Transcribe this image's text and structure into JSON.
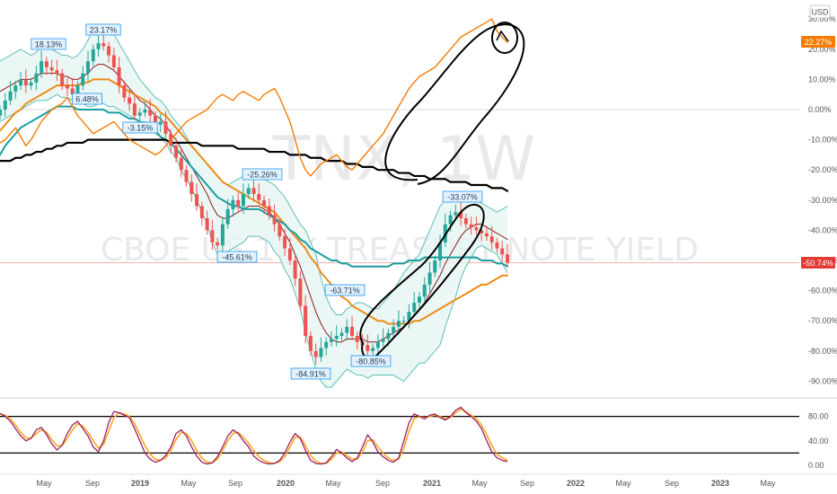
{
  "currency": "USD",
  "watermark": {
    "symbol": "TNX, 1W",
    "name": "CBOE US 10Y TREASURY NOTE YIELD"
  },
  "colors": {
    "bg": "#ffffff",
    "up": "#26a69a",
    "down": "#ef5350",
    "comparison": "#f57c00",
    "sma_long": "#000000",
    "ema_teal": "#1a9ea0",
    "ema_orange": "#ef8a17",
    "bb_basis": "#8b1a1a",
    "bb_band": "#5cbfb7",
    "bb_fill": "#e6f5f3",
    "stoch_k": "#9c1f6a",
    "stoch_d": "#f5a623",
    "price_label_bg": "#e53935",
    "comparison_label_bg": "#f57c00",
    "hl_label_bg": "#e3f2fd",
    "hl_label_border": "#2196f3",
    "drawing": "#000000",
    "grid": "#e6e6e6"
  },
  "chart_data": [
    {
      "type": "candlestick",
      "title": "CBOE US 10Y TREASURY NOTE YIELD",
      "timeframe": "1W",
      "ylabel": "%",
      "ylim": [
        -95,
        32
      ],
      "x_tick_labels": [
        "May",
        "Sep",
        "2019",
        "May",
        "Sep",
        "2020",
        "May",
        "Sep",
        "2021",
        "May",
        "Sep",
        "2022",
        "May",
        "Sep",
        "2023",
        "May"
      ],
      "y_tick_labels": [
        "30.00%",
        "20.00%",
        "10.00%",
        "0.00%",
        "-10.00%",
        "-20.00%",
        "-30.00%",
        "-40.00%",
        "-50.00%",
        "-60.00%",
        "-70.00%",
        "-80.00%",
        "-90.00%"
      ],
      "price_close": [
        0,
        3,
        6,
        8,
        10,
        8,
        9,
        12,
        16,
        14,
        13,
        12,
        8,
        7,
        5,
        8,
        12,
        16,
        20,
        22,
        21,
        18,
        14,
        8,
        4,
        2,
        -2,
        -1,
        0,
        -2,
        -5,
        -4,
        -8,
        -12,
        -16,
        -20,
        -24,
        -28,
        -32,
        -36,
        -40,
        -44,
        -45,
        -38,
        -33,
        -30,
        -32,
        -28,
        -26,
        -28,
        -30,
        -32,
        -35,
        -38,
        -42,
        -46,
        -50,
        -56,
        -65,
        -75,
        -80,
        -82,
        -79,
        -77,
        -76,
        -75,
        -74,
        -72,
        -75,
        -77,
        -78,
        -80,
        -79,
        -77,
        -76,
        -74,
        -72,
        -70,
        -70,
        -67,
        -64,
        -62,
        -58,
        -54,
        -50,
        -44,
        -38,
        -35,
        -34,
        -36,
        -38,
        -39,
        -40,
        -41,
        -42,
        -44,
        -46,
        -48,
        -50.74
      ],
      "bands_basis": [
        6,
        7,
        8,
        9,
        10,
        10,
        10,
        11,
        12,
        12,
        12,
        12,
        11,
        11,
        10,
        10,
        11,
        12,
        14,
        15,
        15,
        14,
        13,
        11,
        9,
        7,
        5,
        3,
        2,
        0,
        -2,
        -3,
        -5,
        -8,
        -10,
        -13,
        -16,
        -19,
        -22,
        -25,
        -28,
        -32,
        -35,
        -36,
        -36,
        -35,
        -34,
        -33,
        -32,
        -32,
        -32,
        -33,
        -34,
        -36,
        -38,
        -41,
        -44,
        -48,
        -52,
        -57,
        -62,
        -67,
        -71,
        -74,
        -76,
        -77,
        -77,
        -76,
        -76,
        -76,
        -76,
        -77,
        -77,
        -77,
        -76,
        -75,
        -74,
        -73,
        -72,
        -70,
        -68,
        -66,
        -64,
        -61,
        -58,
        -55,
        -51,
        -48,
        -45,
        -42,
        -40,
        -39,
        -38,
        -38,
        -39,
        -40,
        -41,
        -42,
        -43
      ],
      "bands_upper": [
        16,
        17,
        18,
        19,
        20,
        19,
        18,
        19,
        21,
        21,
        20,
        19,
        18,
        18,
        17,
        18,
        20,
        23,
        27,
        28,
        28,
        27,
        25,
        22,
        19,
        16,
        13,
        10,
        8,
        6,
        4,
        3,
        1,
        -2,
        -4,
        -6,
        -9,
        -12,
        -14,
        -16,
        -18,
        -20,
        -22,
        -24,
        -25,
        -24,
        -23,
        -22,
        -22,
        -22,
        -22,
        -23,
        -24,
        -25,
        -27,
        -29,
        -32,
        -35,
        -38,
        -40,
        -44,
        -48,
        -56,
        -62,
        -66,
        -68,
        -68,
        -66,
        -65,
        -64,
        -64,
        -65,
        -66,
        -66,
        -64,
        -62,
        -60,
        -57,
        -54,
        -52,
        -50,
        -48,
        -44,
        -40,
        -36,
        -32,
        -30,
        -29,
        -28,
        -28,
        -28,
        -29,
        -30,
        -31,
        -32,
        -33,
        -34,
        -33,
        -32
      ],
      "bands_lower": [
        -4,
        -3,
        -2,
        -1,
        0,
        1,
        2,
        3,
        3,
        3,
        4,
        5,
        4,
        4,
        3,
        2,
        2,
        1,
        1,
        2,
        2,
        1,
        1,
        0,
        -1,
        -2,
        -3,
        -4,
        -4,
        -6,
        -8,
        -9,
        -11,
        -14,
        -16,
        -20,
        -23,
        -26,
        -30,
        -34,
        -38,
        -44,
        -48,
        -48,
        -47,
        -46,
        -45,
        -44,
        -42,
        -42,
        -42,
        -43,
        -44,
        -47,
        -49,
        -53,
        -56,
        -61,
        -66,
        -74,
        -80,
        -86,
        -90,
        -92,
        -92,
        -90,
        -88,
        -86,
        -87,
        -88,
        -88,
        -89,
        -88,
        -88,
        -88,
        -88,
        -88,
        -89,
        -90,
        -88,
        -86,
        -84,
        -84,
        -82,
        -80,
        -78,
        -72,
        -67,
        -62,
        -56,
        -52,
        -49,
        -46,
        -45,
        -46,
        -47,
        -48,
        -51,
        -54
      ],
      "ema_teal": [
        -15,
        -12,
        -10,
        -8,
        -6,
        -5,
        -4,
        -3,
        -2,
        -1,
        0,
        1,
        1,
        1,
        1,
        0,
        0,
        0,
        0,
        0,
        0,
        -1,
        -1,
        -1,
        -2,
        -3,
        -3,
        -4,
        -5,
        -6,
        -7,
        -9,
        -10,
        -11,
        -13,
        -15,
        -17,
        -19,
        -21,
        -23,
        -25,
        -27,
        -29,
        -30,
        -31,
        -32,
        -32,
        -33,
        -33,
        -33,
        -33,
        -34,
        -35,
        -36,
        -37,
        -38,
        -40,
        -41,
        -43,
        -44,
        -46,
        -47,
        -48,
        -49,
        -50,
        -50,
        -51,
        -51,
        -52,
        -52,
        -52,
        -52,
        -52,
        -52,
        -52,
        -52,
        -51,
        -51,
        -51,
        -50,
        -50,
        -50,
        -49,
        -49,
        -49,
        -49,
        -49,
        -49,
        -49,
        -49,
        -49,
        -49,
        -49,
        -50,
        -50,
        -50,
        -51,
        -51,
        -52
      ],
      "ema_orange": [
        -7,
        -5,
        -3,
        -1,
        0,
        2,
        3,
        4,
        5,
        6,
        7,
        8,
        8,
        8,
        8,
        8,
        9,
        9,
        10,
        10,
        10,
        10,
        9,
        8,
        7,
        6,
        5,
        4,
        3,
        2,
        1,
        -1,
        -2,
        -4,
        -6,
        -8,
        -10,
        -12,
        -14,
        -16,
        -18,
        -20,
        -22,
        -24,
        -25,
        -26,
        -27,
        -28,
        -29,
        -30,
        -31,
        -32,
        -33,
        -34,
        -36,
        -38,
        -40,
        -42,
        -44,
        -46,
        -49,
        -51,
        -54,
        -56,
        -58,
        -60,
        -62,
        -63,
        -65,
        -66,
        -67,
        -68,
        -69,
        -70,
        -70,
        -71,
        -71,
        -71,
        -71,
        -71,
        -70,
        -70,
        -69,
        -68,
        -67,
        -66,
        -65,
        -64,
        -63,
        -62,
        -61,
        -60,
        -59,
        -58,
        -58,
        -57,
        -56,
        -55,
        -55
      ],
      "sma_black": [
        -17,
        -17,
        -17,
        -16,
        -16,
        -15,
        -15,
        -14,
        -14,
        -13,
        -13,
        -12,
        -12,
        -11,
        -11,
        -11,
        -11,
        -10,
        -10,
        -10,
        -10,
        -10,
        -10,
        -10,
        -10,
        -10,
        -10,
        -10,
        -10,
        -10,
        -10,
        -10,
        -10,
        -11,
        -11,
        -11,
        -11,
        -11,
        -11,
        -12,
        -12,
        -12,
        -12,
        -12,
        -12,
        -12,
        -13,
        -13,
        -13,
        -13,
        -13,
        -13,
        -14,
        -14,
        -14,
        -14,
        -15,
        -15,
        -15,
        -15,
        -16,
        -16,
        -16,
        -17,
        -17,
        -17,
        -17,
        -18,
        -18,
        -18,
        -19,
        -19,
        -19,
        -20,
        -20,
        -20,
        -20,
        -21,
        -21,
        -21,
        -22,
        -22,
        -22,
        -23,
        -23,
        -23,
        -23,
        -24,
        -24,
        -24,
        -24,
        -25,
        -25,
        -25,
        -25,
        -26,
        -26,
        -26,
        -27
      ],
      "comparison_series": [
        -11,
        -10,
        -8,
        -6,
        -9,
        -12,
        -10,
        -7,
        -4,
        -2,
        0,
        1,
        2,
        4,
        1,
        -2,
        -4,
        -6,
        -8,
        -7,
        -6,
        -5,
        -4,
        -6,
        -8,
        -10,
        -11,
        -12,
        -13,
        -14,
        -15,
        -14,
        -12,
        -10,
        -8,
        -6,
        -4,
        -3,
        -2,
        -1,
        0,
        2,
        4,
        5,
        4,
        3,
        5,
        6,
        5,
        4,
        3,
        5,
        6,
        7,
        4,
        0,
        -4,
        -10,
        -16,
        -20,
        -22,
        -20,
        -18,
        -17,
        -16,
        -15,
        -17,
        -19,
        -20,
        -18,
        -16,
        -14,
        -12,
        -10,
        -8,
        -5,
        -2,
        1,
        4,
        7,
        9,
        11,
        12,
        13,
        14,
        16,
        18,
        20,
        22,
        24,
        25,
        26,
        27,
        28,
        29,
        30,
        26,
        24,
        22.27
      ],
      "annotations": [
        "18.13%",
        "6.48%",
        "23.17%",
        "-3.15%",
        "-25.26%",
        "-45.61%",
        "-63.71%",
        "-84.91%",
        "-80.85%",
        "-33.07%"
      ],
      "price_label": "-50.74%",
      "comparison_label": "22.27%"
    },
    {
      "type": "line",
      "title": "",
      "ylim": [
        0,
        100
      ],
      "y_tick_labels": [
        "80.00",
        "40.00",
        "0.00"
      ],
      "levels": [
        80,
        20
      ],
      "series": [
        {
          "values": [
            85,
            80,
            72,
            60,
            48,
            40,
            44,
            58,
            62,
            50,
            35,
            25,
            33,
            52,
            66,
            72,
            60,
            48,
            30,
            22,
            40,
            70,
            88,
            86,
            82,
            78,
            60,
            40,
            20,
            10,
            5,
            8,
            16,
            30,
            52,
            58,
            48,
            30,
            15,
            5,
            2,
            4,
            14,
            30,
            48,
            58,
            52,
            40,
            30,
            15,
            8,
            4,
            2,
            3,
            8,
            20,
            38,
            52,
            44,
            24,
            8,
            3,
            2,
            4,
            14,
            26,
            20,
            12,
            6,
            12,
            30,
            50,
            38,
            22,
            14,
            8,
            5,
            12,
            40,
            70,
            84,
            80,
            76,
            82,
            84,
            78,
            74,
            80,
            90,
            95,
            86,
            80,
            72,
            60,
            40,
            22,
            12,
            8,
            6
          ]
        },
        {
          "values": [
            84,
            82,
            76,
            66,
            54,
            45,
            44,
            52,
            58,
            54,
            42,
            32,
            32,
            44,
            58,
            68,
            64,
            54,
            40,
            28,
            34,
            56,
            78,
            86,
            84,
            80,
            68,
            50,
            32,
            18,
            10,
            8,
            12,
            24,
            42,
            54,
            52,
            40,
            24,
            12,
            5,
            4,
            10,
            24,
            40,
            52,
            54,
            46,
            36,
            24,
            14,
            8,
            4,
            3,
            6,
            14,
            30,
            46,
            46,
            32,
            16,
            7,
            3,
            3,
            10,
            20,
            22,
            16,
            10,
            10,
            22,
            40,
            42,
            30,
            20,
            12,
            8,
            10,
            28,
            56,
            76,
            80,
            78,
            80,
            82,
            80,
            76,
            78,
            86,
            92,
            88,
            82,
            76,
            66,
            50,
            32,
            18,
            12,
            8
          ]
        }
      ]
    }
  ]
}
